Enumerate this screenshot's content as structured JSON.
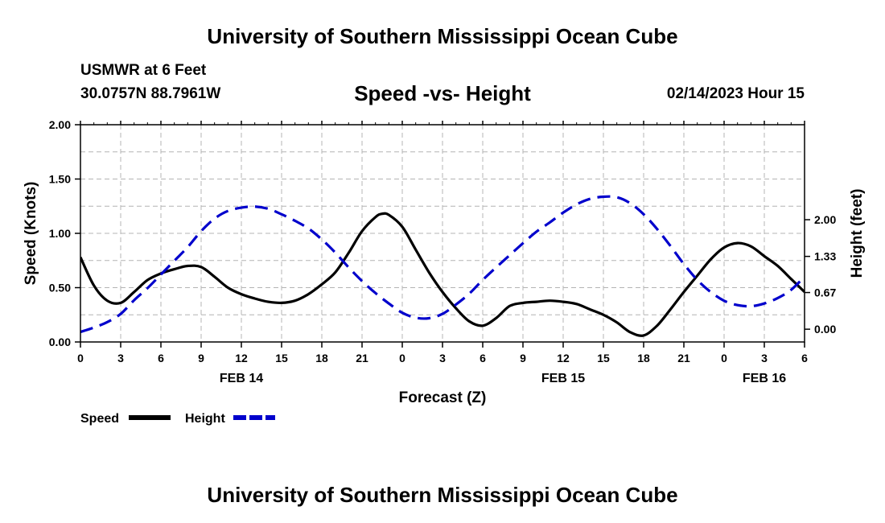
{
  "header": {
    "title": "University of Southern Mississippi Ocean Cube",
    "station": "USMWR at 6 Feet",
    "coordinates": "30.0757N  88.7961W",
    "datetime": "02/14/2023 Hour 15",
    "footer_title": "University of Southern Mississippi Ocean Cube"
  },
  "colors": {
    "speed": "#000000",
    "height": "#0000cc",
    "grid": "#b4b4b4"
  },
  "chart_data": {
    "type": "line",
    "title": "Speed -vs- Height",
    "xlabel": "Forecast (Z)",
    "ylabel": "Speed (Knots)",
    "y2label": "Height (feet)",
    "x_unit": "hours since 00Z Feb 14",
    "xlim": [
      0,
      54
    ],
    "ylim": [
      0,
      2.0
    ],
    "y2lim": [
      -0.233,
      3.735
    ],
    "x_ticks": [
      0,
      3,
      6,
      9,
      12,
      15,
      18,
      21,
      24,
      27,
      30,
      33,
      36,
      39,
      42,
      45,
      48,
      51,
      54
    ],
    "x_tick_labels": [
      "0",
      "3",
      "6",
      "9",
      "12",
      "15",
      "18",
      "21",
      "0",
      "3",
      "6",
      "9",
      "12",
      "15",
      "18",
      "21",
      "0",
      "3",
      "6"
    ],
    "date_labels": [
      {
        "x": 12,
        "label": "FEB 14"
      },
      {
        "x": 36,
        "label": "FEB 15"
      },
      {
        "x": 51,
        "label": "FEB 16"
      }
    ],
    "y_ticks": [
      0,
      0.5,
      1.0,
      1.5,
      2.0
    ],
    "y_tick_labels": [
      "0.00",
      "0.50",
      "1.00",
      "1.50",
      "2.00"
    ],
    "y2_ticks": [
      0,
      0.67,
      1.33,
      2.0
    ],
    "y2_tick_labels": [
      "0.00",
      "0.67",
      "1.33",
      "2.00"
    ],
    "grid": true,
    "legend": "bottom-left",
    "series": [
      {
        "name": "Speed",
        "axis": "left",
        "style": "solid",
        "points": [
          [
            0,
            0.78
          ],
          [
            1,
            0.52
          ],
          [
            2,
            0.38
          ],
          [
            3,
            0.36
          ],
          [
            4,
            0.46
          ],
          [
            5,
            0.57
          ],
          [
            6,
            0.63
          ],
          [
            7,
            0.67
          ],
          [
            8,
            0.7
          ],
          [
            9,
            0.69
          ],
          [
            10,
            0.6
          ],
          [
            11,
            0.5
          ],
          [
            12,
            0.44
          ],
          [
            13,
            0.4
          ],
          [
            14,
            0.37
          ],
          [
            15,
            0.36
          ],
          [
            16,
            0.38
          ],
          [
            17,
            0.44
          ],
          [
            18,
            0.53
          ],
          [
            19,
            0.64
          ],
          [
            20,
            0.82
          ],
          [
            21,
            1.02
          ],
          [
            22,
            1.15
          ],
          [
            22.5,
            1.18
          ],
          [
            23,
            1.17
          ],
          [
            24,
            1.06
          ],
          [
            25,
            0.85
          ],
          [
            26,
            0.64
          ],
          [
            27,
            0.46
          ],
          [
            28,
            0.31
          ],
          [
            29,
            0.19
          ],
          [
            30,
            0.15
          ],
          [
            31,
            0.22
          ],
          [
            32,
            0.33
          ],
          [
            33,
            0.36
          ],
          [
            34,
            0.37
          ],
          [
            35,
            0.38
          ],
          [
            36,
            0.37
          ],
          [
            37,
            0.35
          ],
          [
            38,
            0.3
          ],
          [
            39,
            0.25
          ],
          [
            40,
            0.18
          ],
          [
            41,
            0.09
          ],
          [
            42,
            0.06
          ],
          [
            43,
            0.15
          ],
          [
            44,
            0.3
          ],
          [
            45,
            0.46
          ],
          [
            46,
            0.61
          ],
          [
            47,
            0.76
          ],
          [
            48,
            0.87
          ],
          [
            49,
            0.91
          ],
          [
            50,
            0.88
          ],
          [
            51,
            0.79
          ],
          [
            52,
            0.7
          ],
          [
            53,
            0.58
          ],
          [
            54,
            0.46
          ]
        ]
      },
      {
        "name": "Height",
        "axis": "right",
        "style": "dashed",
        "points": [
          [
            0,
            -0.05
          ],
          [
            1,
            0.03
          ],
          [
            2,
            0.13
          ],
          [
            3,
            0.28
          ],
          [
            4,
            0.53
          ],
          [
            5,
            0.75
          ],
          [
            6,
            1.0
          ],
          [
            7,
            1.25
          ],
          [
            8,
            1.5
          ],
          [
            9,
            1.79
          ],
          [
            10,
            2.02
          ],
          [
            11,
            2.16
          ],
          [
            12,
            2.22
          ],
          [
            13,
            2.24
          ],
          [
            14,
            2.2
          ],
          [
            15,
            2.1
          ],
          [
            16,
            1.98
          ],
          [
            17,
            1.84
          ],
          [
            18,
            1.64
          ],
          [
            19,
            1.4
          ],
          [
            20,
            1.13
          ],
          [
            21,
            0.88
          ],
          [
            22,
            0.66
          ],
          [
            23,
            0.47
          ],
          [
            24,
            0.3
          ],
          [
            25,
            0.21
          ],
          [
            26,
            0.2
          ],
          [
            27,
            0.28
          ],
          [
            28,
            0.45
          ],
          [
            29,
            0.65
          ],
          [
            30,
            0.9
          ],
          [
            31,
            1.13
          ],
          [
            32,
            1.35
          ],
          [
            33,
            1.57
          ],
          [
            34,
            1.78
          ],
          [
            35,
            1.95
          ],
          [
            36,
            2.13
          ],
          [
            37,
            2.28
          ],
          [
            38,
            2.38
          ],
          [
            39,
            2.42
          ],
          [
            40,
            2.41
          ],
          [
            41,
            2.3
          ],
          [
            42,
            2.1
          ],
          [
            43,
            1.83
          ],
          [
            44,
            1.52
          ],
          [
            45,
            1.19
          ],
          [
            46,
            0.9
          ],
          [
            47,
            0.68
          ],
          [
            48,
            0.52
          ],
          [
            49,
            0.44
          ],
          [
            50,
            0.42
          ],
          [
            51,
            0.47
          ],
          [
            52,
            0.57
          ],
          [
            53,
            0.72
          ],
          [
            54,
            0.96
          ]
        ]
      }
    ]
  }
}
